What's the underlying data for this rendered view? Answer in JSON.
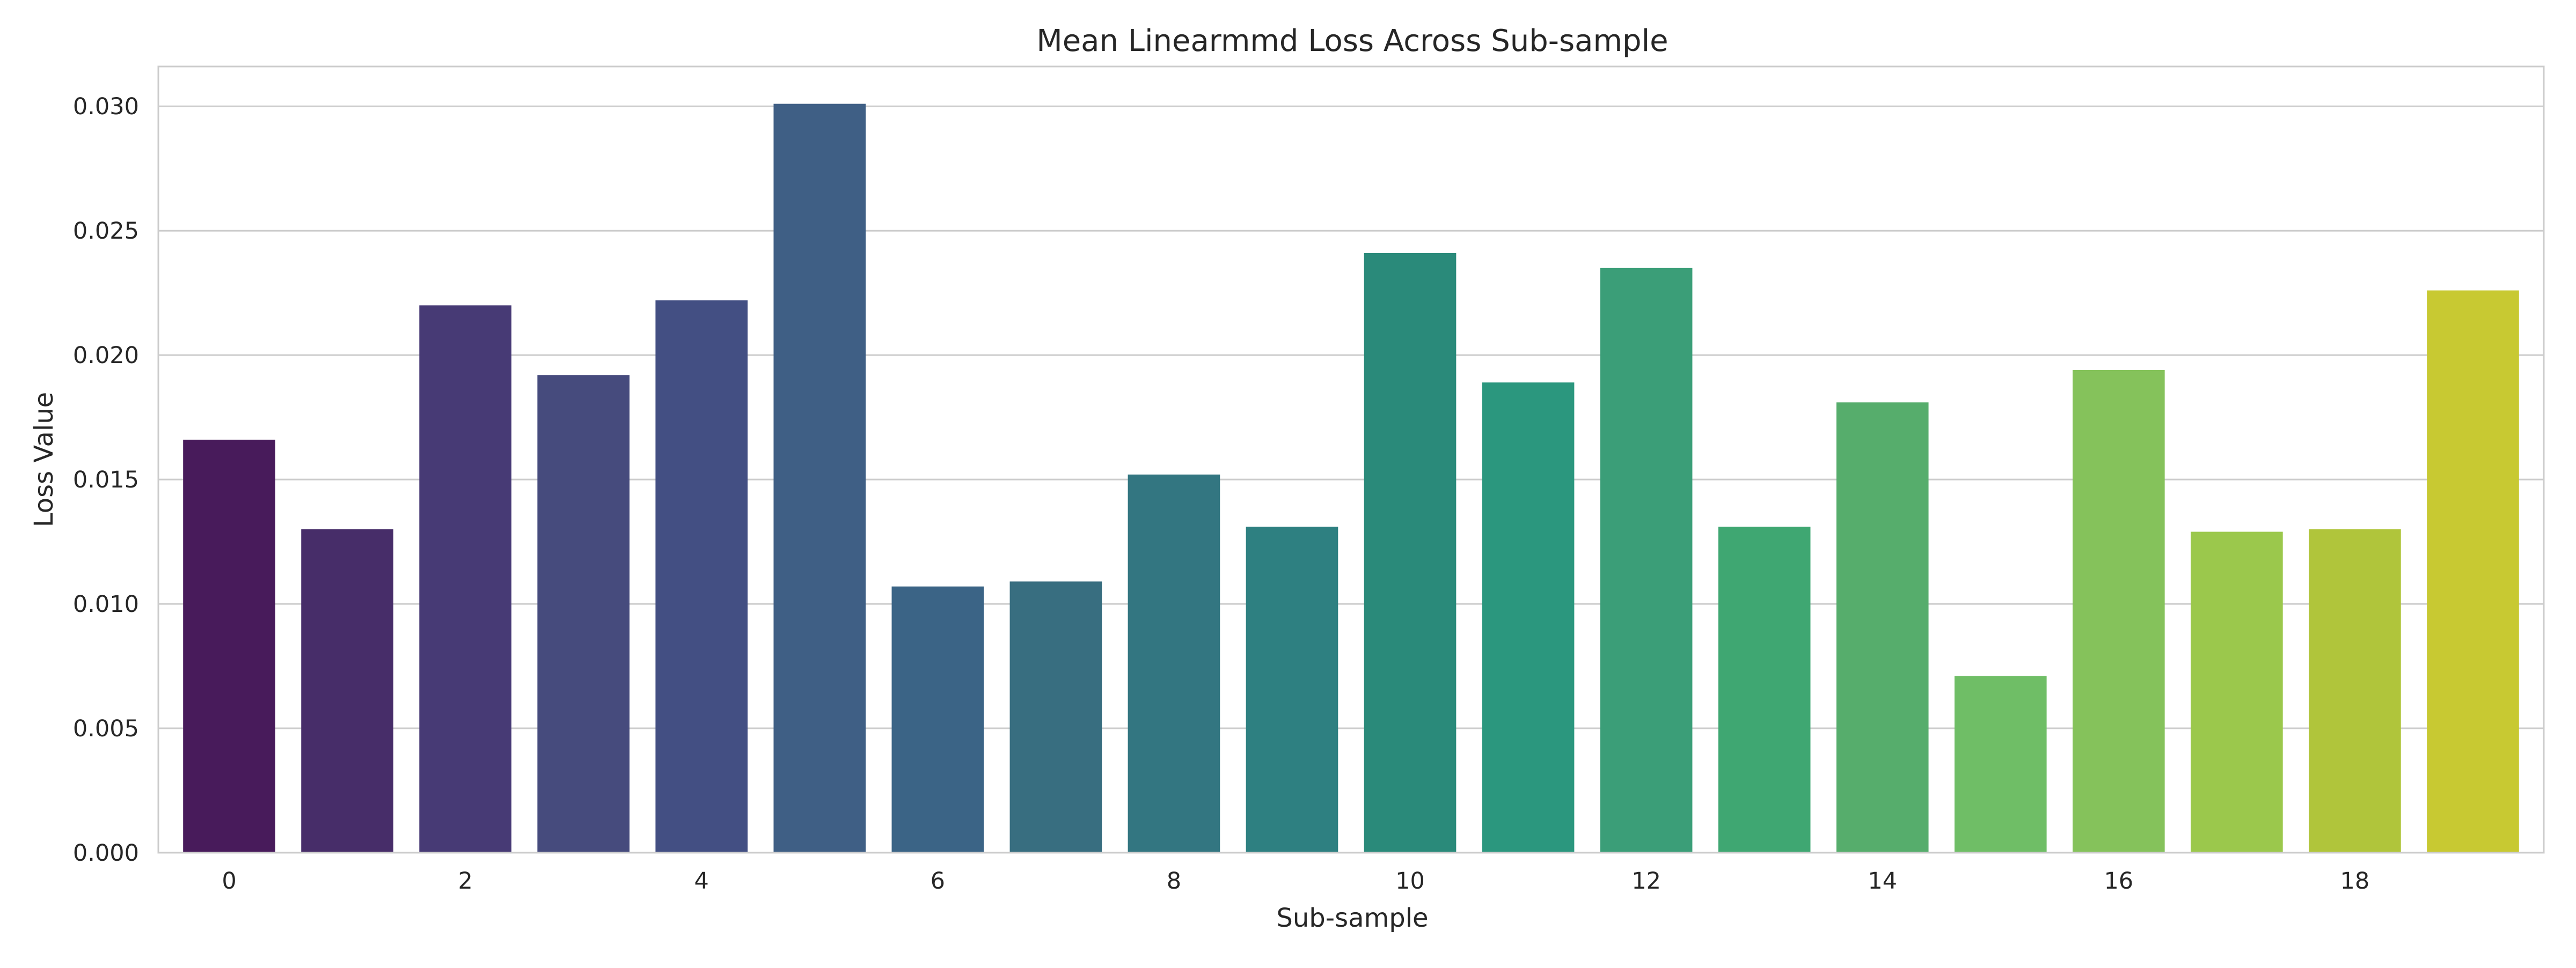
{
  "chart_data": {
    "type": "bar",
    "title": "Mean Linearmmd Loss Across Sub-sample",
    "xlabel": "Sub-sample",
    "ylabel": "Loss Value",
    "categories": [
      "0",
      "1",
      "2",
      "3",
      "4",
      "5",
      "6",
      "7",
      "8",
      "9",
      "10",
      "11",
      "12",
      "13",
      "14",
      "15",
      "16",
      "17",
      "18",
      "19"
    ],
    "x_tick_labels": [
      "0",
      "2",
      "4",
      "6",
      "8",
      "10",
      "12",
      "14",
      "16",
      "18"
    ],
    "values": [
      0.0166,
      0.013,
      0.022,
      0.0192,
      0.0222,
      0.0301,
      0.0107,
      0.0109,
      0.0152,
      0.0131,
      0.0241,
      0.0189,
      0.0235,
      0.0131,
      0.0181,
      0.0071,
      0.0194,
      0.0129,
      0.013,
      0.0226
    ],
    "colors": [
      "#481b5b",
      "#472d69",
      "#473a75",
      "#464b7d",
      "#434f83",
      "#3f5f85",
      "#3b6486",
      "#386e80",
      "#337681",
      "#2e8081",
      "#2a8a7a",
      "#2b977e",
      "#3b9e78",
      "#3fa772",
      "#56ad6c",
      "#6fbe66",
      "#85c25b",
      "#9bc84c",
      "#b0c53b",
      "#c8c932"
    ],
    "y_ticks": [
      0.0,
      0.005,
      0.01,
      0.015,
      0.02,
      0.025,
      0.03
    ],
    "y_tick_labels": [
      "0.000",
      "0.005",
      "0.010",
      "0.015",
      "0.020",
      "0.025",
      "0.030"
    ],
    "ylim": [
      0,
      0.0316
    ],
    "grid": "horizontal"
  }
}
